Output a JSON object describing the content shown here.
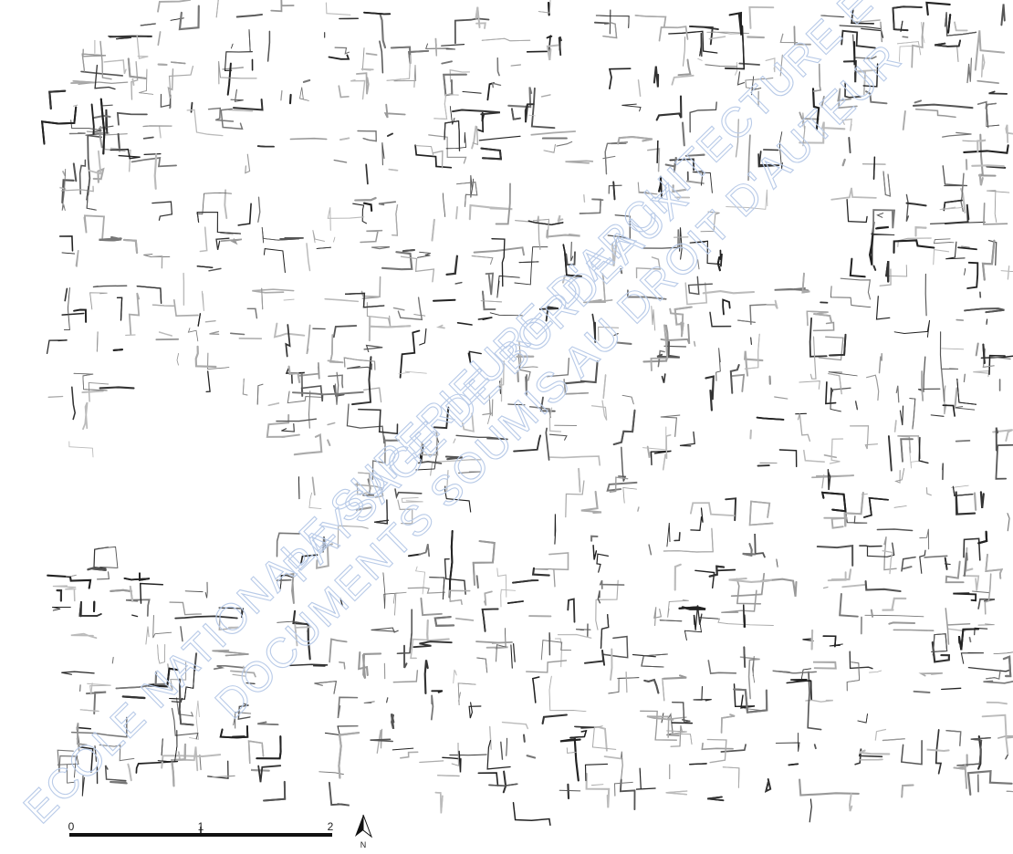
{
  "watermark": {
    "lines": [
      "ECOLE NATIONALE SUPERIEURE D'ARCHITECTURE ET DE",
      "PAYSAGE DE BORDEAUX",
      "DOCUMENTS SOUMIS AU DROIT D'AUTEUR"
    ]
  },
  "scale_bar": {
    "labels": [
      "0",
      "1",
      "2"
    ]
  },
  "north_arrow": {
    "label": "N"
  }
}
